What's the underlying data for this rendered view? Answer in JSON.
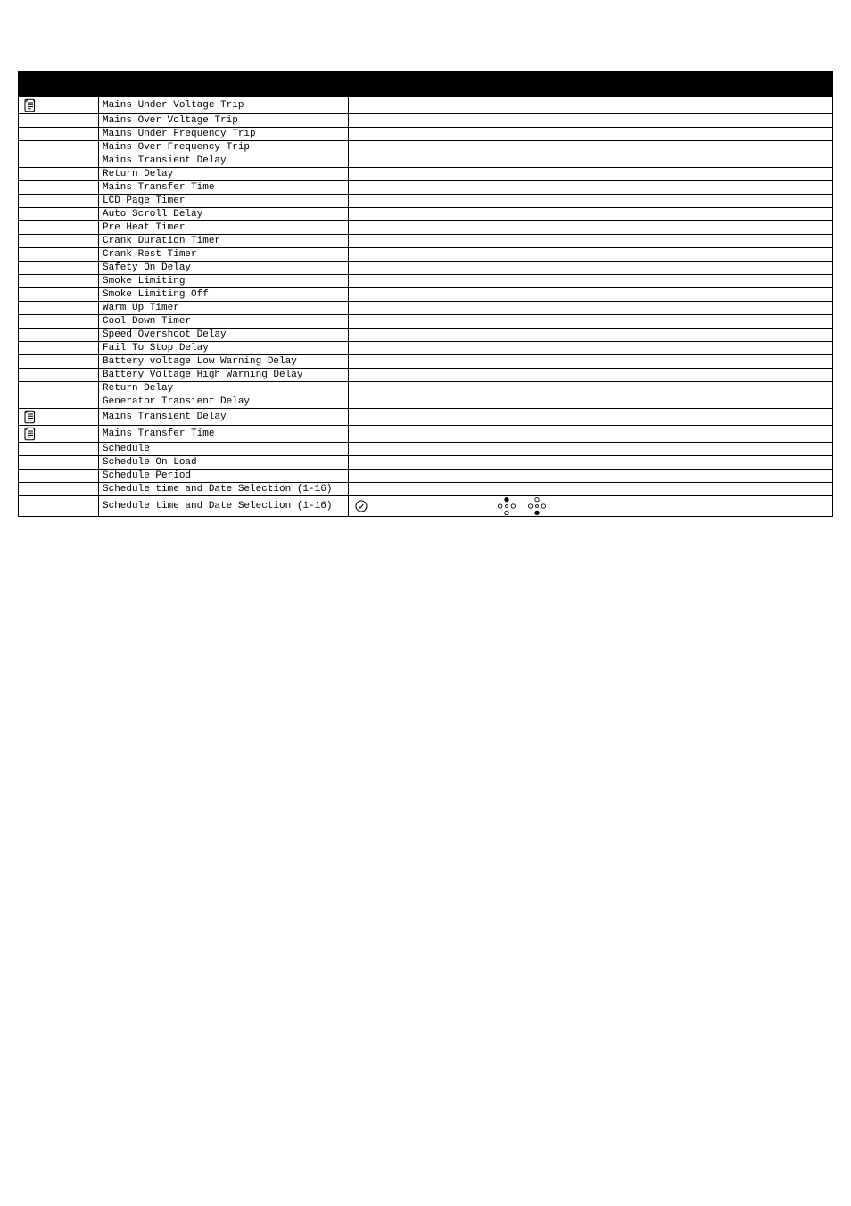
{
  "rows": [
    {
      "param": "Mains Under Voltage Trip",
      "icon": "doc",
      "tall": true
    },
    {
      "param": "Mains Over Voltage Trip"
    },
    {
      "param": "Mains Under Frequency Trip"
    },
    {
      "param": "Mains Over Frequency Trip"
    },
    {
      "param": "Mains Transient Delay"
    },
    {
      "param": "Return Delay"
    },
    {
      "param": "Mains Transfer Time"
    },
    {
      "param": "LCD Page Timer"
    },
    {
      "param": "Auto Scroll Delay"
    },
    {
      "param": "Pre Heat Timer"
    },
    {
      "param": "Crank Duration Timer"
    },
    {
      "param": "Crank Rest Timer"
    },
    {
      "param": "Safety On Delay"
    },
    {
      "param": "Smoke Limiting"
    },
    {
      "param": "Smoke Limiting Off"
    },
    {
      "param": "Warm Up Timer"
    },
    {
      "param": "Cool Down Timer"
    },
    {
      "param": "Speed Overshoot Delay"
    },
    {
      "param": "Fail To Stop Delay"
    },
    {
      "param": "Battery voltage Low Warning Delay"
    },
    {
      "param": "Battery Voltage High Warning Delay"
    },
    {
      "param": "Return Delay"
    },
    {
      "param": "Generator Transient Delay"
    },
    {
      "param": "Mains Transient Delay",
      "icon": "doc",
      "tall": true
    },
    {
      "param": "Mains Transfer Time",
      "icon": "doc",
      "tall": true
    },
    {
      "param": "Schedule"
    },
    {
      "param": "Schedule On Load"
    },
    {
      "param": "Schedule Period"
    },
    {
      "param": "Schedule time and Date Selection (1-16)"
    },
    {
      "param": "Schedule time and Date Selection (1-16)",
      "value_widgets": true,
      "tall": true
    }
  ],
  "colors": {
    "header_bg": "#000000",
    "border": "#000000",
    "text": "#000000",
    "bg": "#ffffff"
  }
}
